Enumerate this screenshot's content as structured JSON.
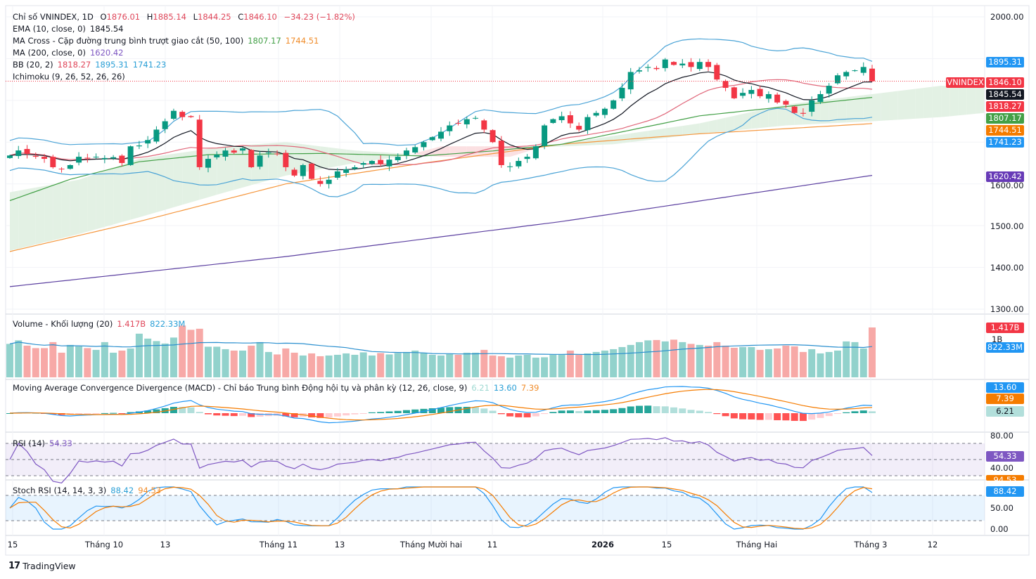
{
  "header": {
    "symbol": "Chỉ số VNINDEX, 1D",
    "o_label": "O",
    "o": "1876.01",
    "h_label": "H",
    "h": "1885.14",
    "l_label": "L",
    "l": "1844.25",
    "c_label": "C",
    "c": "1846.10",
    "change": "−34.23 (−1.82%)"
  },
  "legend": {
    "ema": {
      "label": "EMA (10, close, 0)",
      "value": "1845.54"
    },
    "ma_cross": {
      "label": "MA Cross - Cặp đường trung bình trượt giao cắt (50, 100)",
      "v1": "1807.17",
      "v2": "1744.51"
    },
    "ma200": {
      "label": "MA (200, close, 0)",
      "value": "1620.42"
    },
    "bb": {
      "label": "BB (20, 2)",
      "basis": "1818.27",
      "upper": "1895.31",
      "lower": "1741.23"
    },
    "ichimoku": {
      "label": "Ichimoku (9, 26, 52, 26, 26)"
    }
  },
  "volume_legend": {
    "label": "Volume - Khối lượng (20)",
    "value": "1.417B",
    "ma": "822.33M"
  },
  "macd_legend": {
    "label": "Moving Average Convergence Divergence (MACD) - Chỉ báo Trung bình Động hội tụ và phân kỳ (12, 26, close, 9)",
    "hist": "6.21",
    "macd": "13.60",
    "signal": "7.39"
  },
  "rsi_legend": {
    "label": "RSI (14)",
    "value": "54.33"
  },
  "stoch_legend": {
    "label": "Stoch RSI (14, 14, 3, 3)",
    "k": "88.42",
    "d": "94.53"
  },
  "price_axis": {
    "ticks": [
      "2000.00",
      "1600.00",
      "1500.00",
      "1400.00",
      "1300.00"
    ],
    "symbol_tag": "VNINDEX"
  },
  "volume_axis": {
    "tick": "1B"
  },
  "rsi_axis": {
    "ticks": [
      "80.00",
      "40.00"
    ]
  },
  "stoch_axis": {
    "ticks": [
      "50.00",
      "0.00"
    ]
  },
  "time_axis": [
    "15",
    "Tháng 10",
    "13",
    "Tháng 11",
    "13",
    "Tháng Mười hai",
    "11",
    "2026",
    "15",
    "Tháng Hai",
    "Tháng 3",
    "12"
  ],
  "branding": "TradingView",
  "colors": {
    "up": "#089981",
    "down": "#f23645",
    "ema": "#131722",
    "ma50": "#43a047",
    "ma100": "#f5963c",
    "ma200": "#5b3fa0",
    "bb_basis": "#e0677a",
    "bb_band": "#4aa3d6",
    "cloud_up": "#e3f1e4",
    "cloud_down": "#fbe0e2"
  },
  "chart_data": {
    "type": "candlestick",
    "symbol": "VNINDEX",
    "interval": "1D",
    "ylim": [
      1300,
      2000
    ],
    "closes": [
      1668,
      1680,
      1672,
      1665,
      1660,
      1640,
      1635,
      1645,
      1665,
      1662,
      1665,
      1662,
      1664,
      1650,
      1690,
      1692,
      1705,
      1730,
      1750,
      1775,
      1760,
      1760,
      1640,
      1660,
      1670,
      1680,
      1675,
      1685,
      1640,
      1668,
      1675,
      1672,
      1640,
      1620,
      1645,
      1612,
      1600,
      1610,
      1630,
      1635,
      1640,
      1650,
      1655,
      1648,
      1658,
      1665,
      1680,
      1688,
      1700,
      1712,
      1725,
      1740,
      1745,
      1755,
      1758,
      1730,
      1700,
      1645,
      1642,
      1655,
      1665,
      1690,
      1740,
      1755,
      1762,
      1745,
      1730,
      1760,
      1770,
      1780,
      1800,
      1830,
      1868,
      1872,
      1880,
      1875,
      1898,
      1885,
      1888,
      1880,
      1892,
      1880,
      1850,
      1830,
      1805,
      1818,
      1825,
      1810,
      1815,
      1795,
      1790,
      1770,
      1768,
      1800,
      1815,
      1835,
      1860,
      1868,
      1872,
      1880,
      1846.1
    ],
    "last_bar": {
      "open": 1876.01,
      "high": 1885.14,
      "low": 1844.25,
      "close": 1846.1
    },
    "volume_millions": [
      950,
      1050,
      900,
      830,
      830,
      1000,
      700,
      920,
      880,
      830,
      780,
      1000,
      700,
      760,
      820,
      1240,
      1100,
      1030,
      960,
      1130,
      1470,
      1350,
      1380,
      870,
      870,
      800,
      760,
      760,
      900,
      1000,
      720,
      650,
      820,
      700,
      620,
      680,
      600,
      620,
      640,
      680,
      640,
      710,
      620,
      690,
      650,
      690,
      720,
      760,
      700,
      640,
      620,
      660,
      640,
      700,
      700,
      780,
      620,
      600,
      560,
      620,
      640,
      560,
      570,
      640,
      640,
      760,
      640,
      680,
      720,
      760,
      800,
      860,
      920,
      1000,
      1050,
      1060,
      1020,
      1070,
      1000,
      950,
      920,
      900,
      1000,
      900,
      840,
      860,
      860,
      780,
      800,
      820,
      900,
      880,
      720,
      800,
      680,
      720,
      760,
      1020,
      1000,
      820,
      1417
    ],
    "ma_lines_by_bar": {
      "ma50": [
        [
          0,
          1560
        ],
        [
          7,
          1611
        ],
        [
          15,
          1653
        ],
        [
          23,
          1670
        ],
        [
          36,
          1673
        ],
        [
          48,
          1667
        ],
        [
          56,
          1679
        ],
        [
          64,
          1695
        ],
        [
          72,
          1729
        ],
        [
          80,
          1763
        ],
        [
          89,
          1783
        ],
        [
          100,
          1807.17
        ]
      ],
      "ma100": [
        [
          0,
          1438
        ],
        [
          15,
          1510
        ],
        [
          32,
          1600
        ],
        [
          48,
          1650
        ],
        [
          64,
          1695
        ],
        [
          80,
          1720
        ],
        [
          100,
          1744.51
        ]
      ],
      "ma200": [
        [
          0,
          1354
        ],
        [
          32,
          1426
        ],
        [
          64,
          1510
        ],
        [
          100,
          1620.42
        ]
      ]
    },
    "ichimoku_cloud_by_bar": {
      "span_a": [
        [
          0,
          1580
        ],
        [
          8,
          1610
        ],
        [
          15,
          1660
        ],
        [
          25,
          1690
        ],
        [
          32,
          1700
        ],
        [
          40,
          1680
        ],
        [
          46,
          1672
        ],
        [
          50,
          1665
        ],
        [
          58,
          1665
        ],
        [
          62,
          1690
        ],
        [
          70,
          1715
        ],
        [
          80,
          1745
        ],
        [
          90,
          1790
        ],
        [
          100,
          1815
        ],
        [
          108,
          1835
        ],
        [
          113,
          1830
        ]
      ],
      "span_b": [
        [
          0,
          1440
        ],
        [
          8,
          1480
        ],
        [
          15,
          1520
        ],
        [
          25,
          1580
        ],
        [
          32,
          1620
        ],
        [
          40,
          1650
        ],
        [
          46,
          1668
        ],
        [
          50,
          1690
        ],
        [
          58,
          1690
        ],
        [
          62,
          1688
        ],
        [
          70,
          1695
        ],
        [
          80,
          1720
        ],
        [
          90,
          1740
        ],
        [
          100,
          1750
        ],
        [
          108,
          1760
        ],
        [
          113,
          1770
        ]
      ]
    },
    "rsi_levels": [
      70,
      50,
      30
    ],
    "stoch_levels": [
      80,
      20
    ]
  }
}
